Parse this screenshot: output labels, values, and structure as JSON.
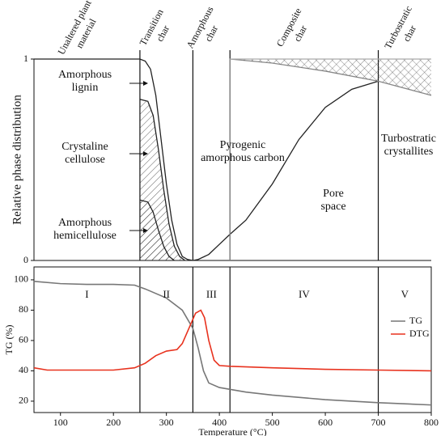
{
  "chart_data": [
    {
      "type": "line",
      "ylabel": "Relative phase distribution",
      "xlim": [
        50,
        800
      ],
      "ylim": [
        0,
        1
      ],
      "yticks": [
        0,
        1
      ],
      "phase_labels": [
        [
          "Unaltered plant",
          "material"
        ],
        [
          "Transition",
          "char"
        ],
        [
          "Amorphous",
          "char"
        ],
        [
          "Composite",
          "char"
        ],
        [
          "Turbostratic",
          "char"
        ]
      ],
      "annotations": [
        [
          "Amorphous",
          "lignin"
        ],
        [
          "Crystaline",
          "cellulose"
        ],
        [
          "Amorphous",
          "hemicellulose"
        ],
        [
          "Pyrogenic",
          "amorphous carbon"
        ],
        [
          "Pore",
          "space"
        ],
        [
          "Turbostratic",
          "crystallites"
        ]
      ],
      "boundaries": [
        250,
        350,
        420,
        700
      ],
      "series": [
        {
          "color": "#222222",
          "x": [
            50,
            250,
            260,
            270,
            280,
            290,
            300,
            310,
            320,
            330,
            340,
            350
          ],
          "values": [
            1,
            1,
            0.99,
            0.95,
            0.82,
            0.6,
            0.38,
            0.2,
            0.08,
            0.02,
            0.005,
            0
          ]
        },
        {
          "color": "#222222",
          "fill": "hatch",
          "x": [
            250,
            265,
            275,
            285,
            295,
            305,
            315,
            325,
            335
          ],
          "values": [
            0.8,
            0.79,
            0.72,
            0.55,
            0.35,
            0.18,
            0.07,
            0.02,
            0
          ]
        },
        {
          "color": "#222222",
          "fill": "hatch",
          "x": [
            250,
            265,
            275,
            285,
            295,
            305,
            315
          ],
          "values": [
            0.3,
            0.29,
            0.24,
            0.15,
            0.07,
            0.02,
            0
          ]
        },
        {
          "color": "#222222",
          "x": [
            350,
            360,
            380,
            400,
            420,
            450,
            500,
            550,
            600,
            650,
            700
          ],
          "values": [
            0,
            0.005,
            0.03,
            0.08,
            0.13,
            0.2,
            0.38,
            0.6,
            0.76,
            0.85,
            0.89
          ]
        },
        {
          "color": "#888888",
          "x": [
            420,
            420,
            500,
            600,
            700,
            800
          ],
          "values": [
            0,
            1,
            0.98,
            0.94,
            0.89,
            0.82
          ]
        },
        {
          "color": "#aaaaaa",
          "fill": "crosshatch",
          "x": [
            420,
            800
          ],
          "values": [
            1,
            1
          ]
        }
      ]
    },
    {
      "type": "line",
      "ylabel": "TG (%)",
      "xlabel": "Temperature (°C)",
      "xlim": [
        50,
        800
      ],
      "ylim": [
        12.5,
        108.5
      ],
      "xticks": [
        100,
        200,
        300,
        400,
        500,
        600,
        700,
        800
      ],
      "yticks": [
        20,
        40,
        60,
        80,
        100
      ],
      "boundaries": [
        250,
        350,
        420,
        700
      ],
      "region_labels": [
        "I",
        "II",
        "III",
        "IV",
        "V"
      ],
      "legend": "right",
      "series": [
        {
          "name": "TG",
          "color": "#777777",
          "x": [
            50,
            100,
            150,
            200,
            240,
            260,
            300,
            330,
            350,
            360,
            370,
            380,
            400,
            450,
            500,
            600,
            700,
            800
          ],
          "values": [
            99,
            97.5,
            97,
            97,
            96.5,
            94,
            88,
            80,
            68,
            55,
            40,
            32,
            29,
            26,
            24,
            21,
            19,
            17.5
          ]
        },
        {
          "name": "DTG",
          "color": "#e8321e",
          "x": [
            50,
            75,
            200,
            240,
            260,
            280,
            300,
            320,
            330,
            345,
            355,
            365,
            372,
            380,
            390,
            400,
            420,
            500,
            600,
            700,
            800
          ],
          "values": [
            42,
            40.5,
            40.5,
            42,
            45,
            50,
            53,
            54,
            58,
            70,
            78,
            80,
            75,
            60,
            47,
            43.5,
            43,
            42,
            41,
            40.5,
            40
          ]
        }
      ]
    }
  ]
}
